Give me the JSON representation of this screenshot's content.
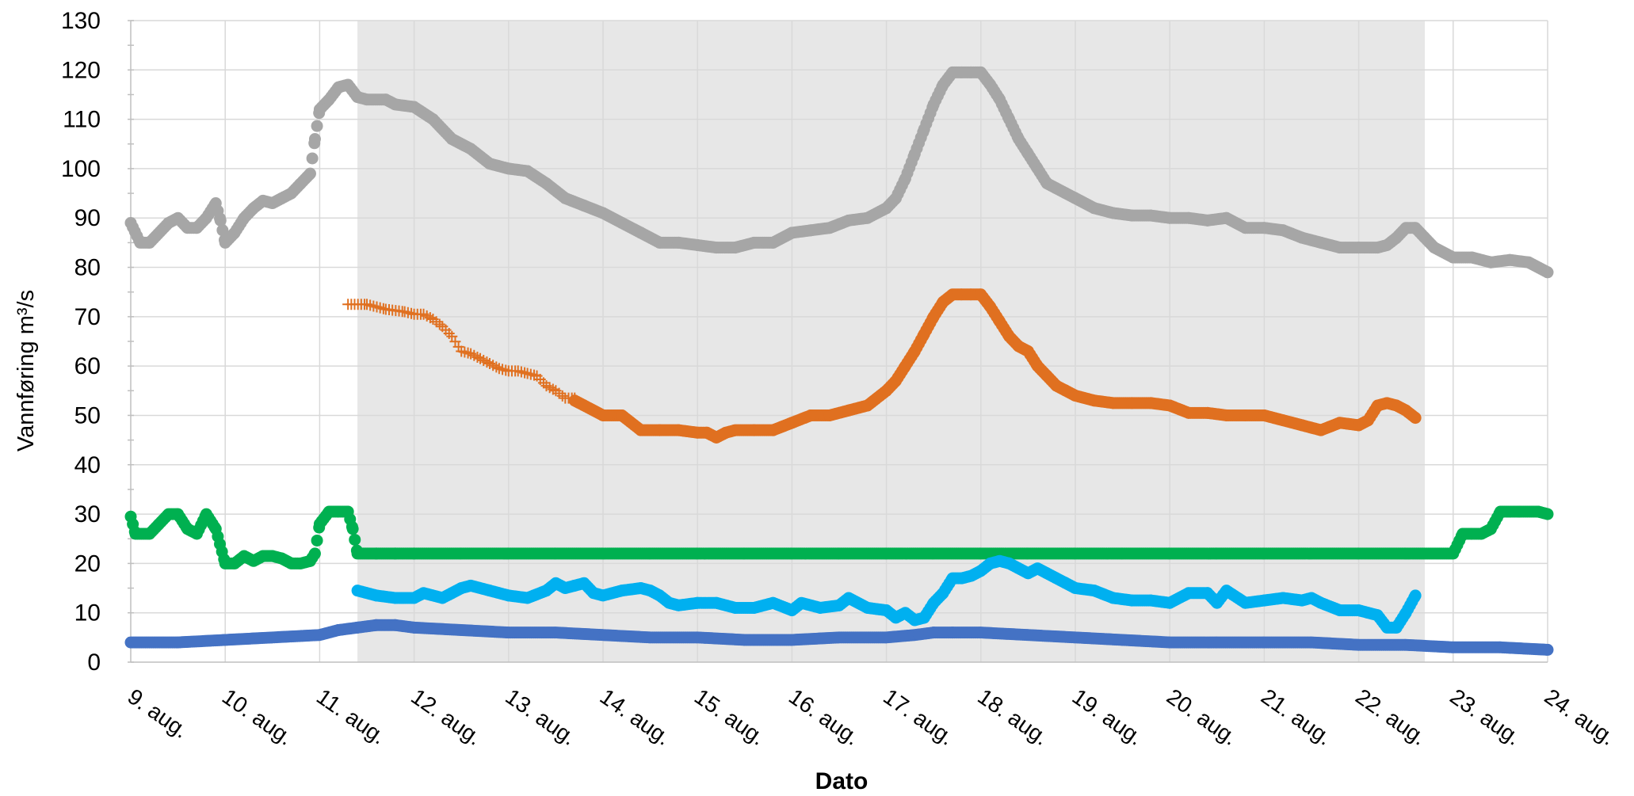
{
  "chart_data": {
    "type": "scatter",
    "title": "",
    "xlabel": "Dato",
    "ylabel": "Vannføring m³/s",
    "ylim": [
      0,
      130
    ],
    "yticks": [
      0,
      10,
      20,
      30,
      40,
      50,
      60,
      70,
      80,
      90,
      100,
      110,
      120,
      130
    ],
    "xlim": [
      9,
      24
    ],
    "xticks": [
      {
        "x": 9,
        "label": "9. aug."
      },
      {
        "x": 10,
        "label": "10. aug."
      },
      {
        "x": 11,
        "label": "11. aug."
      },
      {
        "x": 12,
        "label": "12. aug."
      },
      {
        "x": 13,
        "label": "13. aug."
      },
      {
        "x": 14,
        "label": "14. aug."
      },
      {
        "x": 15,
        "label": "15. aug."
      },
      {
        "x": 16,
        "label": "16. aug."
      },
      {
        "x": 17,
        "label": "17. aug."
      },
      {
        "x": 18,
        "label": "18. aug."
      },
      {
        "x": 19,
        "label": "19. aug."
      },
      {
        "x": 20,
        "label": "20. aug."
      },
      {
        "x": 21,
        "label": "21. aug."
      },
      {
        "x": 22,
        "label": "22. aug."
      },
      {
        "x": 23,
        "label": "23. aug."
      },
      {
        "x": 24,
        "label": "24. aug."
      }
    ],
    "grid": true,
    "legend": "none",
    "shaded_region": {
      "x": [
        11.4,
        22.7
      ],
      "color": "#e7e7e7"
    },
    "series": [
      {
        "color": "#a6a6a6",
        "marker": "circle",
        "x": [
          9.0,
          9.1,
          9.2,
          9.4,
          9.5,
          9.6,
          9.7,
          9.8,
          9.9,
          9.95,
          10.0,
          10.1,
          10.2,
          10.3,
          10.4,
          10.5,
          10.6,
          10.7,
          10.8,
          10.9,
          10.95,
          11.0,
          11.1,
          11.2,
          11.3,
          11.4,
          11.5,
          11.7,
          11.8,
          12.0,
          12.2,
          12.4,
          12.6,
          12.8,
          13.0,
          13.2,
          13.4,
          13.6,
          13.8,
          14.0,
          14.2,
          14.4,
          14.6,
          14.8,
          15.0,
          15.2,
          15.4,
          15.6,
          15.8,
          16.0,
          16.2,
          16.4,
          16.6,
          16.8,
          17.0,
          17.1,
          17.2,
          17.3,
          17.4,
          17.5,
          17.6,
          17.7,
          17.8,
          17.9,
          18.0,
          18.1,
          18.2,
          18.3,
          18.4,
          18.5,
          18.6,
          18.7,
          18.8,
          18.9,
          19.0,
          19.2,
          19.4,
          19.6,
          19.8,
          20.0,
          20.2,
          20.4,
          20.6,
          20.8,
          21.0,
          21.2,
          21.4,
          21.6,
          21.8,
          22.0,
          22.2,
          22.3,
          22.4,
          22.5,
          22.6,
          22.7,
          22.8,
          23.0,
          23.2,
          23.4,
          23.6,
          23.8,
          24.0
        ],
        "values": [
          89,
          85,
          85,
          89,
          90,
          88,
          88,
          90,
          93,
          89.5,
          85,
          87,
          90,
          92,
          93.5,
          93,
          94,
          95,
          97,
          99,
          106,
          112,
          114,
          116.5,
          117,
          114.5,
          114,
          114,
          113,
          112.5,
          110,
          106,
          104,
          101,
          100,
          99.5,
          97,
          94,
          92.5,
          91,
          89,
          87,
          85,
          85,
          84.5,
          84,
          84,
          85,
          85,
          87,
          87.5,
          88,
          89.5,
          90,
          92,
          94,
          98,
          103,
          108,
          113,
          117,
          119.5,
          119.5,
          119.5,
          119.5,
          117,
          114,
          110,
          106,
          103,
          100,
          97,
          96,
          95,
          94,
          92,
          91,
          90.5,
          90.5,
          90,
          90,
          89.5,
          90,
          88,
          88,
          87.5,
          86,
          85,
          84,
          84,
          84,
          84.5,
          86,
          88,
          88,
          86,
          84,
          82,
          82,
          81,
          81.5,
          81,
          79
        ]
      },
      {
        "color": "#e07020",
        "marker": "plus",
        "x_end": 13.7,
        "x": [
          11.3,
          11.5,
          11.7,
          11.9,
          12.0,
          12.1,
          12.2,
          12.3,
          12.4,
          12.5,
          12.6,
          12.7,
          12.8,
          12.9,
          13.0,
          13.1,
          13.2,
          13.3,
          13.4,
          13.5,
          13.6,
          13.7
        ],
        "values": [
          72.5,
          72.5,
          71.5,
          71,
          70.5,
          70.5,
          69.5,
          68,
          66,
          63,
          62.5,
          61.5,
          60.5,
          59.5,
          59,
          59,
          58.5,
          58,
          56,
          55,
          53.5,
          53.5
        ]
      },
      {
        "color": "#e07020",
        "marker": "circle",
        "x": [
          13.7,
          13.8,
          14.0,
          14.2,
          14.4,
          14.6,
          14.8,
          15.0,
          15.1,
          15.2,
          15.3,
          15.4,
          15.6,
          15.8,
          16.0,
          16.2,
          16.4,
          16.6,
          16.8,
          17.0,
          17.1,
          17.2,
          17.3,
          17.4,
          17.5,
          17.6,
          17.7,
          17.8,
          17.9,
          18.0,
          18.1,
          18.2,
          18.3,
          18.4,
          18.5,
          18.6,
          18.7,
          18.8,
          18.9,
          19.0,
          19.2,
          19.4,
          19.6,
          19.8,
          20.0,
          20.2,
          20.4,
          20.6,
          20.8,
          21.0,
          21.2,
          21.4,
          21.6,
          21.8,
          22.0,
          22.1,
          22.2,
          22.3,
          22.4,
          22.5,
          22.6
        ],
        "values": [
          53,
          52,
          50,
          50,
          47,
          47,
          47,
          46.5,
          46.5,
          45.5,
          46.5,
          47,
          47,
          47,
          48.5,
          50,
          50,
          51,
          52,
          55,
          57,
          60,
          63,
          66.5,
          70,
          73,
          74.5,
          74.5,
          74.5,
          74.5,
          72,
          69,
          66,
          64,
          63,
          60,
          58,
          56,
          55,
          54,
          53,
          52.5,
          52.5,
          52.5,
          52,
          50.5,
          50.5,
          50,
          50,
          50,
          49,
          48,
          47,
          48.5,
          48,
          49,
          52,
          52.5,
          52,
          51,
          49.5
        ]
      },
      {
        "color": "#00b050",
        "marker": "circle",
        "x": [
          9.0,
          9.05,
          9.2,
          9.3,
          9.4,
          9.5,
          9.6,
          9.7,
          9.8,
          9.9,
          10.0,
          10.1,
          10.2,
          10.3,
          10.4,
          10.5,
          10.6,
          10.7,
          10.8,
          10.9,
          10.95,
          11.0,
          11.1,
          11.2,
          11.3,
          11.35,
          11.4,
          11.6,
          11.8,
          12.0,
          12.5,
          13.0,
          13.5,
          14.0,
          14.5,
          15.0,
          15.5,
          16.0,
          16.5,
          17.0,
          17.5,
          18.0,
          18.5,
          19.0,
          19.5,
          20.0,
          20.5,
          21.0,
          21.5,
          22.0,
          22.5,
          23.0,
          23.1,
          23.2,
          23.3,
          23.4,
          23.5,
          23.7,
          23.9,
          24.0
        ],
        "values": [
          29.5,
          26,
          26,
          28,
          30,
          30,
          27,
          26,
          30,
          27,
          20,
          20,
          21.5,
          20.5,
          21.5,
          21.5,
          21,
          20,
          20,
          20.5,
          22,
          28,
          30.5,
          30.5,
          30.5,
          27,
          22,
          22,
          22,
          22,
          22,
          22,
          22,
          22,
          22,
          22,
          22,
          22,
          22,
          22,
          22,
          22,
          22,
          22,
          22,
          22,
          22,
          22,
          22,
          22,
          22,
          22,
          26,
          26,
          26,
          27,
          30.5,
          30.5,
          30.5,
          30
        ]
      },
      {
        "color": "#00b0f0",
        "marker": "circle",
        "x": [
          11.4,
          11.6,
          11.8,
          12.0,
          12.1,
          12.3,
          12.4,
          12.5,
          12.6,
          12.8,
          13.0,
          13.2,
          13.4,
          13.5,
          13.6,
          13.7,
          13.8,
          13.9,
          14.0,
          14.2,
          14.4,
          14.5,
          14.6,
          14.7,
          14.8,
          15.0,
          15.2,
          15.4,
          15.6,
          15.8,
          16.0,
          16.1,
          16.3,
          16.5,
          16.6,
          16.8,
          17.0,
          17.1,
          17.2,
          17.3,
          17.4,
          17.5,
          17.6,
          17.7,
          17.8,
          17.9,
          18.0,
          18.1,
          18.2,
          18.3,
          18.4,
          18.5,
          18.6,
          18.7,
          18.8,
          18.9,
          19.0,
          19.2,
          19.4,
          19.6,
          19.8,
          20.0,
          20.2,
          20.4,
          20.5,
          20.6,
          20.8,
          21.0,
          21.2,
          21.4,
          21.5,
          21.6,
          21.8,
          22.0,
          22.1,
          22.2,
          22.3,
          22.4,
          22.5,
          22.6
        ],
        "values": [
          14.5,
          13.5,
          13,
          13,
          14,
          13,
          14,
          15,
          15.5,
          14.5,
          13.5,
          13,
          14.5,
          16,
          15,
          15.5,
          16,
          14,
          13.5,
          14.5,
          15,
          14.5,
          13.5,
          12,
          11.5,
          12,
          12,
          11,
          11,
          12,
          10.5,
          12,
          11,
          11.5,
          13,
          11,
          10.5,
          9,
          10,
          8.5,
          9,
          12,
          14,
          17,
          17,
          17.5,
          18.5,
          20,
          20.5,
          20,
          19,
          18,
          19,
          18,
          17,
          16,
          15,
          14.5,
          13,
          12.5,
          12.5,
          12,
          14,
          14,
          12,
          14.5,
          12,
          12.5,
          13,
          12.5,
          13,
          12,
          10.5,
          10.5,
          10,
          9.5,
          7,
          7,
          10,
          13.5
        ]
      },
      {
        "color": "#4472c4",
        "marker": "circle",
        "x": [
          9.0,
          9.5,
          10.0,
          10.5,
          11.0,
          11.2,
          11.4,
          11.6,
          11.8,
          12.0,
          12.5,
          13.0,
          13.5,
          14.0,
          14.5,
          15.0,
          15.5,
          16.0,
          16.5,
          17.0,
          17.3,
          17.5,
          17.7,
          18.0,
          18.5,
          19.0,
          19.5,
          20.0,
          20.5,
          21.0,
          21.5,
          22.0,
          22.5,
          23.0,
          23.5,
          24.0
        ],
        "values": [
          4,
          4,
          4.5,
          5,
          5.5,
          6.5,
          7,
          7.5,
          7.5,
          7,
          6.5,
          6,
          6,
          5.5,
          5,
          5,
          4.5,
          4.5,
          5,
          5,
          5.5,
          6,
          6,
          6,
          5.5,
          5,
          4.5,
          4,
          4,
          4,
          4,
          3.5,
          3.5,
          3,
          3,
          2.5
        ]
      }
    ]
  }
}
